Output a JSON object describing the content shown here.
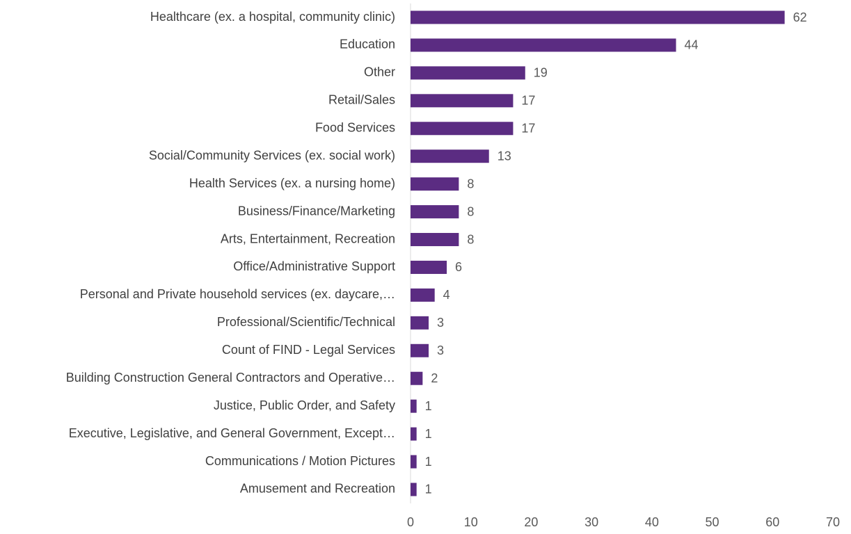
{
  "chart_data": {
    "type": "barh",
    "categories": [
      "Healthcare (ex. a hospital, community clinic)",
      "Education",
      "Other",
      "Retail/Sales",
      "Food Services",
      "Social/Community Services (ex. social work)",
      "Health Services (ex. a nursing home)",
      "Business/Finance/Marketing",
      "Arts, Entertainment, Recreation",
      "Office/Administrative Support",
      "Personal and Private household services (ex. daycare,…",
      "Professional/Scientific/Technical",
      "Count of FIND - Legal Services",
      "Building Construction General Contractors and Operative…",
      "Justice, Public Order, and Safety",
      "Executive, Legislative, and General Government, Except…",
      "Communications / Motion Pictures",
      "Amusement and Recreation"
    ],
    "values": [
      62,
      44,
      19,
      17,
      17,
      13,
      8,
      8,
      8,
      6,
      4,
      3,
      3,
      2,
      1,
      1,
      1,
      1
    ],
    "color": "#5b2c82",
    "xlim": [
      0,
      70
    ],
    "xticks": [
      0,
      10,
      20,
      30,
      40,
      50,
      60,
      70
    ],
    "grid": false
  }
}
